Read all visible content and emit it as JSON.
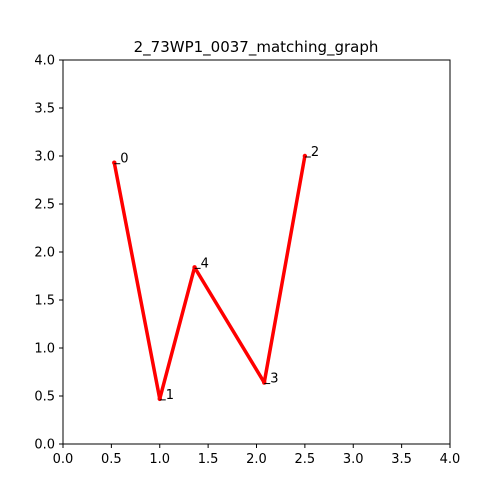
{
  "chart_data": {
    "type": "line",
    "title": "2_73WP1_0037_matching_graph",
    "xlabel": "",
    "ylabel": "",
    "xlim": [
      0.0,
      4.0
    ],
    "ylim": [
      0.0,
      4.0
    ],
    "xticks": [
      "0.0",
      "0.5",
      "1.0",
      "1.5",
      "2.0",
      "2.5",
      "3.0",
      "3.5",
      "4.0"
    ],
    "yticks": [
      "0.0",
      "0.5",
      "1.0",
      "1.5",
      "2.0",
      "2.5",
      "3.0",
      "3.5",
      "4.0"
    ],
    "grid": false,
    "line_color": "#ff0000",
    "nodes": [
      {
        "label": "0",
        "x": 0.53,
        "y": 2.93
      },
      {
        "label": "1",
        "x": 1.0,
        "y": 0.47
      },
      {
        "label": "2",
        "x": 2.5,
        "y": 3.0
      },
      {
        "label": "3",
        "x": 2.08,
        "y": 0.64
      },
      {
        "label": "4",
        "x": 1.36,
        "y": 1.84
      }
    ],
    "edges": [
      [
        0,
        1
      ],
      [
        1,
        4
      ],
      [
        4,
        3
      ],
      [
        3,
        2
      ]
    ]
  }
}
